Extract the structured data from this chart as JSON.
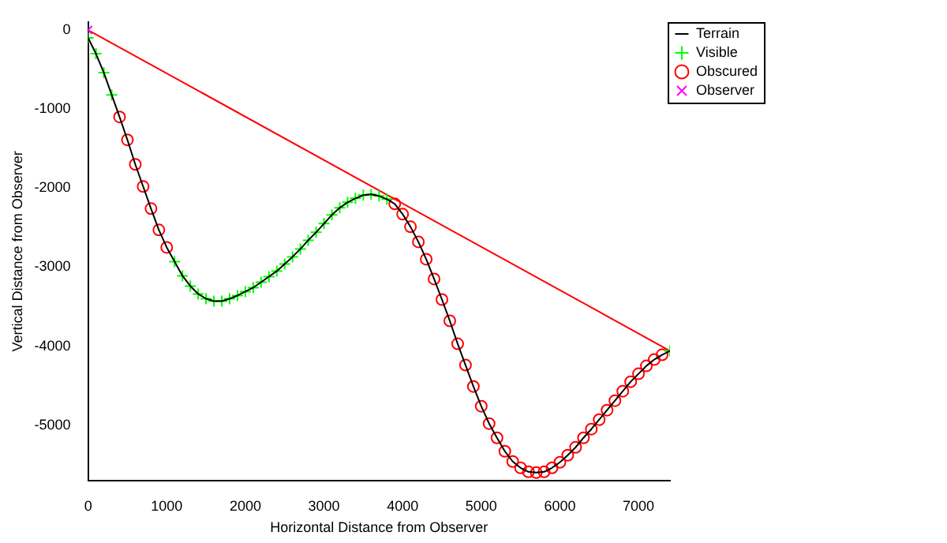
{
  "chart_data": {
    "type": "line",
    "xlabel": "Horizontal Distance from Observer",
    "ylabel": "Vertical Distance from Observer",
    "xlim": [
      0,
      7400
    ],
    "ylim": [
      -5700,
      100
    ],
    "xticks": [
      0,
      1000,
      2000,
      3000,
      4000,
      5000,
      6000,
      7000
    ],
    "yticks": [
      -5000,
      -4000,
      -3000,
      -2000,
      -1000,
      0
    ],
    "legend": "top right",
    "series": [
      {
        "name": "Terrain",
        "type": "line",
        "color": "#000000",
        "marker": "none",
        "line_style": "solid",
        "x": [
          0,
          100,
          200,
          300,
          400,
          500,
          600,
          700,
          800,
          900,
          1000,
          1100,
          1200,
          1300,
          1400,
          1500,
          1600,
          1700,
          1800,
          1900,
          2000,
          2100,
          2200,
          2300,
          2400,
          2500,
          2600,
          2700,
          2800,
          2900,
          3000,
          3100,
          3200,
          3300,
          3400,
          3500,
          3600,
          3700,
          3800,
          3900,
          4000,
          4100,
          4200,
          4300,
          4400,
          4500,
          4600,
          4700,
          4800,
          4900,
          5000,
          5100,
          5200,
          5300,
          5400,
          5500,
          5600,
          5700,
          5800,
          5900,
          6000,
          6100,
          6200,
          6300,
          6400,
          6500,
          6600,
          6700,
          6800,
          6900,
          7000,
          7100,
          7200,
          7300,
          7400
        ],
        "values": [
          -100,
          -300,
          -540,
          -820,
          -1100,
          -1390,
          -1700,
          -1980,
          -2260,
          -2530,
          -2750,
          -2930,
          -3110,
          -3240,
          -3340,
          -3400,
          -3430,
          -3430,
          -3400,
          -3360,
          -3310,
          -3260,
          -3190,
          -3120,
          -3050,
          -2960,
          -2870,
          -2770,
          -2660,
          -2560,
          -2450,
          -2340,
          -2250,
          -2180,
          -2130,
          -2090,
          -2080,
          -2100,
          -2140,
          -2200,
          -2330,
          -2490,
          -2680,
          -2900,
          -3150,
          -3410,
          -3680,
          -3970,
          -4240,
          -4510,
          -4760,
          -4980,
          -5160,
          -5330,
          -5460,
          -5540,
          -5590,
          -5600,
          -5590,
          -5540,
          -5470,
          -5380,
          -5280,
          -5160,
          -5050,
          -4930,
          -4810,
          -4690,
          -4570,
          -4450,
          -4350,
          -4250,
          -4170,
          -4110,
          -4060
        ]
      },
      {
        "name": "Visible",
        "type": "scatter",
        "color": "#00ff00",
        "marker": "cross",
        "x": [
          0,
          100,
          200,
          300,
          1100,
          1200,
          1300,
          1400,
          1500,
          1600,
          1700,
          1800,
          1900,
          2000,
          2100,
          2200,
          2300,
          2400,
          2500,
          2600,
          2700,
          2800,
          2900,
          3000,
          3100,
          3200,
          3300,
          3400,
          3500,
          3600,
          3700,
          3800,
          7400
        ],
        "values": [
          -100,
          -300,
          -540,
          -820,
          -2930,
          -3110,
          -3240,
          -3340,
          -3400,
          -3430,
          -3430,
          -3400,
          -3360,
          -3310,
          -3260,
          -3190,
          -3120,
          -3050,
          -2960,
          -2870,
          -2770,
          -2660,
          -2560,
          -2450,
          -2340,
          -2250,
          -2180,
          -2130,
          -2090,
          -2080,
          -2100,
          -2140,
          -4060
        ]
      },
      {
        "name": "Obscured",
        "type": "scatter",
        "color": "#ff0000",
        "marker": "circle",
        "x": [
          400,
          500,
          600,
          700,
          800,
          900,
          1000,
          3900,
          4000,
          4100,
          4200,
          4300,
          4400,
          4500,
          4600,
          4700,
          4800,
          4900,
          5000,
          5100,
          5200,
          5300,
          5400,
          5500,
          5600,
          5700,
          5800,
          5900,
          6000,
          6100,
          6200,
          6300,
          6400,
          6500,
          6600,
          6700,
          6800,
          6900,
          7000,
          7100,
          7200,
          7300
        ],
        "values": [
          -1100,
          -1390,
          -1700,
          -1980,
          -2260,
          -2530,
          -2750,
          -2200,
          -2330,
          -2490,
          -2680,
          -2900,
          -3150,
          -3410,
          -3680,
          -3970,
          -4240,
          -4510,
          -4760,
          -4980,
          -5160,
          -5330,
          -5460,
          -5540,
          -5590,
          -5600,
          -5590,
          -5540,
          -5470,
          -5380,
          -5280,
          -5160,
          -5050,
          -4930,
          -4810,
          -4690,
          -4570,
          -4450,
          -4350,
          -4250,
          -4170,
          -4110
        ]
      },
      {
        "name": "Observer",
        "type": "scatter",
        "color": "#ff00ff",
        "marker": "cross",
        "x": [
          0
        ],
        "values": [
          0
        ]
      },
      {
        "type": "line",
        "color": "#ff0000",
        "marker": "none",
        "line_style": "solid",
        "x": [
          0,
          7400
        ],
        "values": [
          0,
          -4060
        ]
      }
    ]
  }
}
